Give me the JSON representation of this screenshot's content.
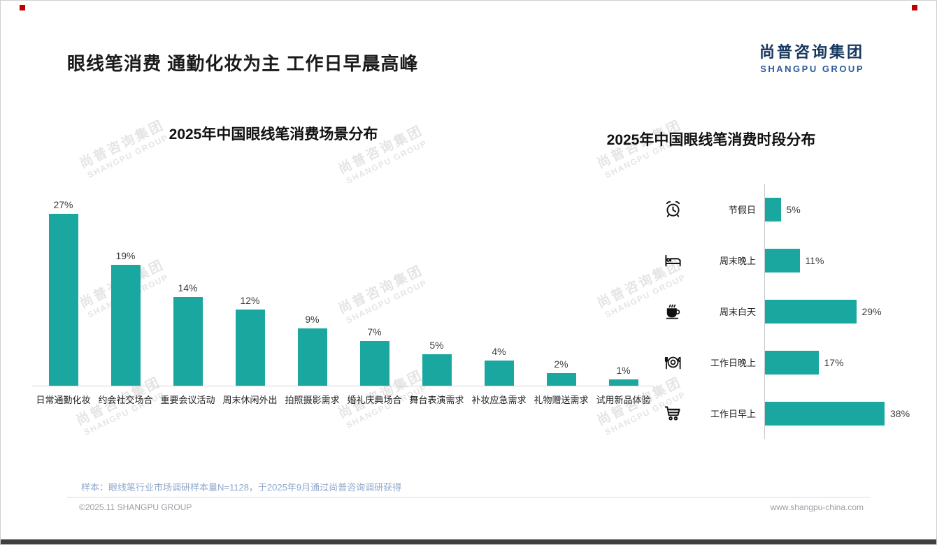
{
  "page": {
    "title": "眼线笔消费 通勤化妆为主 工作日早晨高峰",
    "logo": {
      "cn": "尚普咨询集团",
      "en": "SHANGPU GROUP"
    },
    "watermark": {
      "cn": "尚普咨询集团",
      "en": "SHANGPU GROUP"
    },
    "sample_note": "样本：眼线笔行业市场调研样本量N=1128，于2025年9月通过尚普咨询调研获得",
    "copyright": "©2025.11 SHANGPU GROUP",
    "website": "www.shangpu-china.com"
  },
  "colors": {
    "accent_teal": "#19a7a0",
    "logo_navy": "#17375e",
    "logo_blue": "#2e5c9a",
    "note_blue": "#8fa8cc",
    "corner_red": "#c00000"
  },
  "chart_data": [
    {
      "type": "bar",
      "orientation": "vertical",
      "title": "2025年中国眼线笔消费场景分布",
      "categories": [
        "日常通勤化妆",
        "约会社交场合",
        "重要会议活动",
        "周末休闲外出",
        "拍照摄影需求",
        "婚礼庆典场合",
        "舞台表演需求",
        "补妆应急需求",
        "礼物赠送需求",
        "试用新品体验"
      ],
      "values": [
        27,
        19,
        14,
        12,
        9,
        7,
        5,
        4,
        2,
        1
      ],
      "unit": "%",
      "ylim": [
        0,
        30
      ],
      "grid": false,
      "bar_color": "#19a7a0"
    },
    {
      "type": "bar",
      "orientation": "horizontal",
      "title": "2025年中国眼线笔消费时段分布",
      "categories": [
        "节假日",
        "周末晚上",
        "周末白天",
        "工作日晚上",
        "工作日早上"
      ],
      "values": [
        5,
        11,
        29,
        17,
        38
      ],
      "icons": [
        "alarm-clock-icon",
        "bed-icon",
        "coffee-icon",
        "dining-icon",
        "shopping-cart-icon"
      ],
      "unit": "%",
      "xlim": [
        0,
        40
      ],
      "grid": false,
      "bar_color": "#19a7a0"
    }
  ]
}
